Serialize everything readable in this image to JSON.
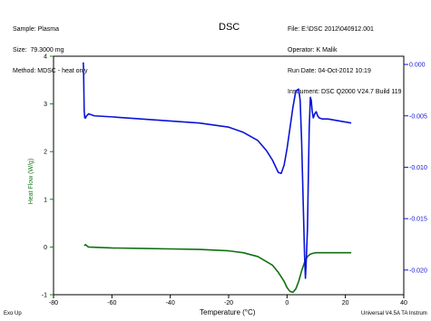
{
  "header": {
    "sample": "Sample: Plasma",
    "size": "Size:  79.3000 mg",
    "method": "Method: MDSC - heat only",
    "file": "File: E:\\DSC 2012\\040912.001",
    "operator": "Operator: K Malik",
    "run_date": "Run Date: 04-Oct-2012 10:19",
    "instrument": "Instrument: DSC Q2000 V24.7 Build 119"
  },
  "footer": {
    "left": "Exo Up",
    "right": "Universal V4.5A TA Instrum"
  },
  "colors": {
    "left_axis": "#1a7a1a",
    "right_axis": "#1414d6",
    "green_curve": "#107010",
    "blue_curve": "#0a14d8"
  },
  "chart_data": {
    "type": "line",
    "title": "DSC",
    "xlabel": "Temperature (°C)",
    "ylabel": "Heat Flow (W/g)",
    "y2label": "",
    "xlim": [
      -80,
      40
    ],
    "ylim": [
      -1,
      4
    ],
    "y2lim": [
      -0.0224,
      0.0008
    ],
    "x_ticks": [
      -80,
      -60,
      -40,
      -20,
      0,
      20,
      40
    ],
    "y_ticks": [
      -1,
      0,
      1,
      2,
      3,
      4
    ],
    "y2_ticks": [
      0.0,
      -0.005,
      -0.01,
      -0.015,
      -0.02
    ],
    "x_tick_labels": [
      "-80",
      "-60",
      "-40",
      "-20",
      "0",
      "20",
      "40"
    ],
    "y_tick_labels": [
      "-1",
      "0",
      "1",
      "2",
      "3",
      "4"
    ],
    "y2_tick_labels": [
      "0.000",
      "-0.005",
      "-0.010",
      "-0.015",
      "-0.020"
    ],
    "grid": false,
    "series": [
      {
        "axis": "left",
        "x": [
          -69.5,
          -69.0,
          -68.5,
          -68.0,
          -60,
          -50,
          -40,
          -30,
          -20,
          -15,
          -10,
          -5,
          -3,
          -1,
          0,
          1,
          2,
          3,
          4,
          5,
          6,
          7,
          8,
          9,
          10,
          12,
          15,
          20,
          22
        ],
        "y": [
          0.03,
          0.05,
          0.02,
          0.0,
          -0.02,
          -0.03,
          -0.04,
          -0.05,
          -0.08,
          -0.12,
          -0.2,
          -0.38,
          -0.53,
          -0.72,
          -0.85,
          -0.93,
          -0.95,
          -0.88,
          -0.72,
          -0.5,
          -0.32,
          -0.2,
          -0.15,
          -0.13,
          -0.12,
          -0.12,
          -0.12,
          -0.12,
          -0.12
        ]
      },
      {
        "axis": "right",
        "x": [
          -69.8,
          -69.7,
          -69.5,
          -69.3,
          -69.0,
          -68.7,
          -68.3,
          -68.0,
          -67,
          -66,
          -60,
          -50,
          -40,
          -30,
          -20,
          -15,
          -10,
          -7,
          -5,
          -3,
          -2,
          -1,
          0,
          1,
          2,
          3,
          4,
          4.5,
          5,
          5.5,
          6,
          6.3,
          6.6,
          7,
          7.3,
          7.6,
          8,
          8.3,
          8.6,
          9,
          9.5,
          10,
          10.5,
          11,
          12,
          14,
          16,
          18,
          20,
          22
        ],
        "y": [
          0.0002,
          -0.0006,
          -0.0045,
          -0.0052,
          -0.0052,
          -0.005,
          -0.0049,
          -0.0048,
          -0.0049,
          -0.005,
          -0.0051,
          -0.0053,
          -0.0055,
          -0.0057,
          -0.0061,
          -0.0066,
          -0.0074,
          -0.0084,
          -0.0093,
          -0.0105,
          -0.0106,
          -0.0098,
          -0.0082,
          -0.0062,
          -0.0042,
          -0.0026,
          -0.0024,
          -0.0035,
          -0.0075,
          -0.013,
          -0.0185,
          -0.0208,
          -0.019,
          -0.016,
          -0.011,
          -0.0062,
          -0.0032,
          -0.0035,
          -0.0045,
          -0.0052,
          -0.0048,
          -0.0046,
          -0.005,
          -0.0052,
          -0.0053,
          -0.0053,
          -0.0054,
          -0.0055,
          -0.0056,
          -0.0057
        ]
      }
    ]
  }
}
